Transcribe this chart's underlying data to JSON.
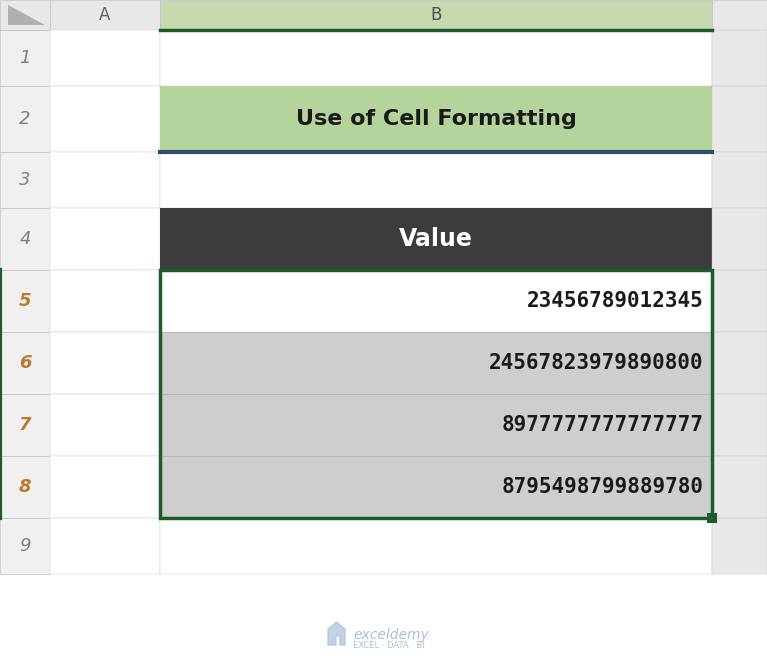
{
  "title": "Use of Cell Formatting",
  "header": "Value",
  "rows": [
    "23456789012345",
    "24567823979890800",
    "8977777777777777",
    "8795498799889780"
  ],
  "row_labels": [
    "1",
    "2",
    "3",
    "4",
    "5",
    "6",
    "7",
    "8",
    "9"
  ],
  "title_bg": "#b5d49b",
  "title_border": "#2d4d6b",
  "header_bg": "#3c3c3c",
  "header_text": "#ffffff",
  "row_bg_odd": "#ffffff",
  "row_bg_even": "#cecece",
  "table_border": "#1a5c2a",
  "text_color": "#1a1a1a",
  "watermark_color": "#a8bfd8",
  "fig_bg": "#ffffff",
  "col_header_bg": "#e8e8e8",
  "row_header_bg": "#f0f0f0",
  "row_num_color": "#c07830",
  "grid_line_color": "#c8c8c8",
  "col_header_border": "#c0c0c0",
  "col_B_header_bg": "#c8d8b0",
  "col_B_bottom_line": "#1a5c2a",
  "selected_row_bg": "#d8e8c8"
}
